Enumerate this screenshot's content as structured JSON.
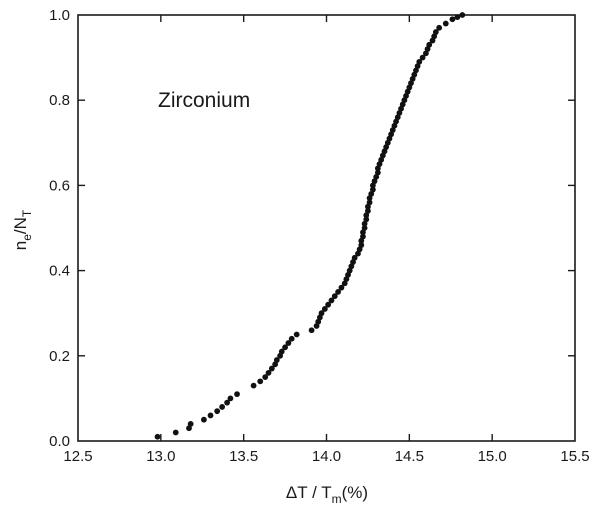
{
  "chart_data": {
    "type": "scatter",
    "title": "",
    "annotation": "Zirconium",
    "xlabel": {
      "main": "ΔT / T",
      "sub": "m",
      "suffix": "(%)"
    },
    "ylabel": {
      "n": "n",
      "n_sub": "e",
      "sep": "/",
      "N": "N",
      "N_sub": "T"
    },
    "xlim": [
      12.5,
      15.5
    ],
    "ylim": [
      0.0,
      1.0
    ],
    "xticks": [
      "12.5",
      "13.0",
      "13.5",
      "14.0",
      "14.5",
      "15.0",
      "15.5"
    ],
    "yticks": [
      "0.0",
      "0.2",
      "0.4",
      "0.6",
      "0.8",
      "1.0"
    ],
    "grid": false,
    "marker_color": "#111111",
    "series": [
      {
        "points": [
          [
            12.98,
            0.01
          ],
          [
            13.09,
            0.02
          ],
          [
            13.17,
            0.03
          ],
          [
            13.18,
            0.04
          ],
          [
            13.26,
            0.05
          ],
          [
            13.3,
            0.06
          ],
          [
            13.34,
            0.07
          ],
          [
            13.37,
            0.08
          ],
          [
            13.4,
            0.09
          ],
          [
            13.42,
            0.1
          ],
          [
            13.46,
            0.11
          ],
          [
            13.56,
            0.13
          ],
          [
            13.6,
            0.14
          ],
          [
            13.63,
            0.15
          ],
          [
            13.65,
            0.16
          ],
          [
            13.67,
            0.17
          ],
          [
            13.69,
            0.18
          ],
          [
            13.7,
            0.19
          ],
          [
            13.72,
            0.2
          ],
          [
            13.73,
            0.21
          ],
          [
            13.75,
            0.22
          ],
          [
            13.77,
            0.23
          ],
          [
            13.79,
            0.24
          ],
          [
            13.82,
            0.25
          ],
          [
            13.91,
            0.26
          ],
          [
            13.94,
            0.27
          ],
          [
            13.95,
            0.28
          ],
          [
            13.96,
            0.29
          ],
          [
            13.97,
            0.3
          ],
          [
            13.99,
            0.31
          ],
          [
            14.01,
            0.32
          ],
          [
            14.03,
            0.33
          ],
          [
            14.05,
            0.34
          ],
          [
            14.07,
            0.35
          ],
          [
            14.09,
            0.36
          ],
          [
            14.11,
            0.37
          ],
          [
            14.12,
            0.38
          ],
          [
            14.13,
            0.39
          ],
          [
            14.14,
            0.4
          ],
          [
            14.15,
            0.41
          ],
          [
            14.16,
            0.42
          ],
          [
            14.17,
            0.43
          ],
          [
            14.19,
            0.44
          ],
          [
            14.2,
            0.45
          ],
          [
            14.21,
            0.46
          ],
          [
            14.21,
            0.47
          ],
          [
            14.22,
            0.48
          ],
          [
            14.22,
            0.49
          ],
          [
            14.23,
            0.5
          ],
          [
            14.23,
            0.51
          ],
          [
            14.24,
            0.52
          ],
          [
            14.24,
            0.53
          ],
          [
            14.25,
            0.54
          ],
          [
            14.25,
            0.55
          ],
          [
            14.26,
            0.56
          ],
          [
            14.26,
            0.57
          ],
          [
            14.27,
            0.58
          ],
          [
            14.28,
            0.59
          ],
          [
            14.28,
            0.6
          ],
          [
            14.29,
            0.61
          ],
          [
            14.3,
            0.62
          ],
          [
            14.31,
            0.63
          ],
          [
            14.31,
            0.64
          ],
          [
            14.32,
            0.65
          ],
          [
            14.33,
            0.66
          ],
          [
            14.34,
            0.67
          ],
          [
            14.35,
            0.68
          ],
          [
            14.36,
            0.69
          ],
          [
            14.37,
            0.7
          ],
          [
            14.38,
            0.71
          ],
          [
            14.39,
            0.72
          ],
          [
            14.4,
            0.73
          ],
          [
            14.41,
            0.74
          ],
          [
            14.42,
            0.75
          ],
          [
            14.43,
            0.76
          ],
          [
            14.44,
            0.77
          ],
          [
            14.45,
            0.78
          ],
          [
            14.46,
            0.79
          ],
          [
            14.47,
            0.8
          ],
          [
            14.48,
            0.81
          ],
          [
            14.49,
            0.82
          ],
          [
            14.5,
            0.83
          ],
          [
            14.51,
            0.84
          ],
          [
            14.52,
            0.85
          ],
          [
            14.53,
            0.86
          ],
          [
            14.54,
            0.87
          ],
          [
            14.55,
            0.88
          ],
          [
            14.56,
            0.89
          ],
          [
            14.58,
            0.9
          ],
          [
            14.6,
            0.91
          ],
          [
            14.61,
            0.92
          ],
          [
            14.62,
            0.93
          ],
          [
            14.64,
            0.94
          ],
          [
            14.65,
            0.95
          ],
          [
            14.66,
            0.96
          ],
          [
            14.68,
            0.97
          ],
          [
            14.72,
            0.98
          ],
          [
            14.76,
            0.99
          ],
          [
            14.79,
            0.995
          ],
          [
            14.82,
            1.0
          ]
        ]
      }
    ]
  }
}
